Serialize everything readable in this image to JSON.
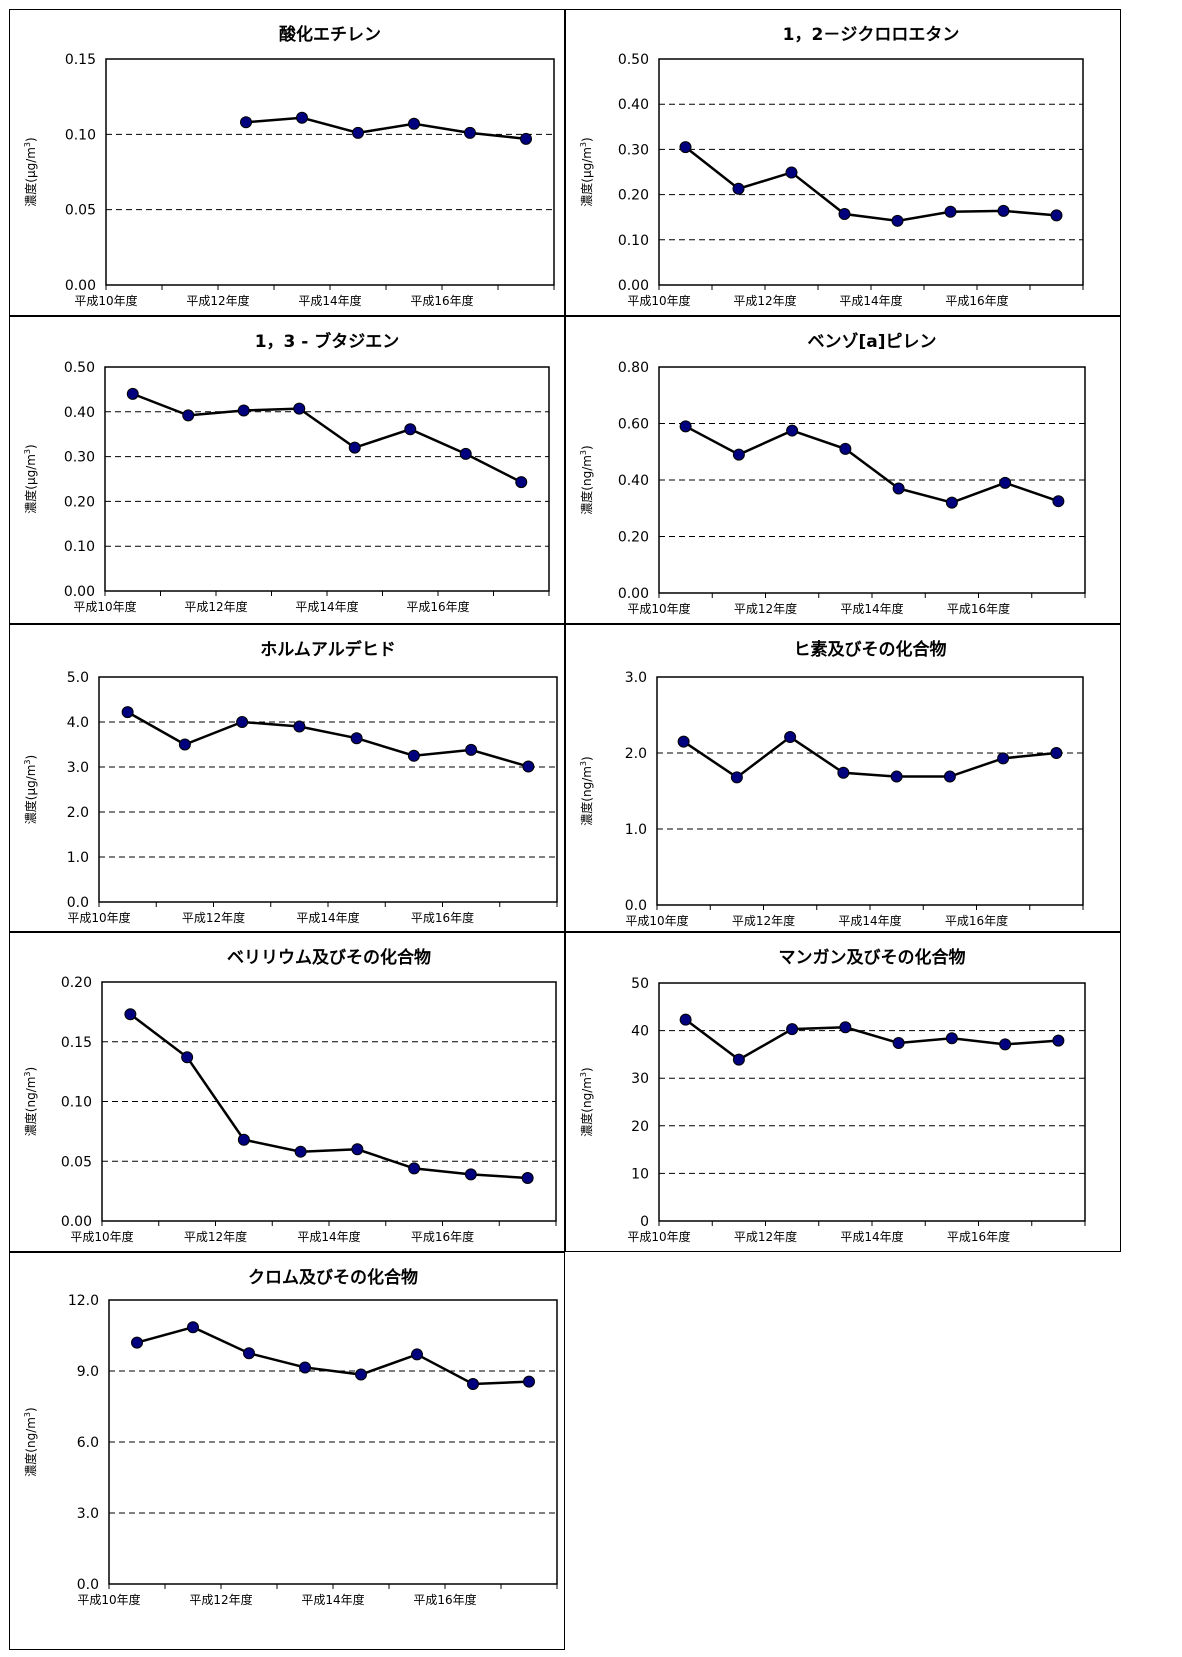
{
  "x_tick_labels": [
    "平成10年度",
    "平成12年度",
    "平成14年度",
    "平成16年度"
  ],
  "colors": {
    "line": "#000000",
    "marker": "#00007f",
    "grid": "#000000",
    "frame": "#000000",
    "background": "#ffffff"
  },
  "chart_data": [
    {
      "type": "line",
      "title": "酸化エチレン",
      "ylabel_main": "濃度(μg/m",
      "ylabel_sup": "3",
      "ylabel_tail": ")",
      "ylim": [
        0,
        0.15
      ],
      "y_ticks": [
        "0.00",
        "0.05",
        "0.10",
        "0.15"
      ],
      "grid": "dashed",
      "x": [
        10,
        11,
        12,
        13,
        14,
        15,
        16,
        17
      ],
      "values": [
        null,
        null,
        0.108,
        0.111,
        0.101,
        0.107,
        0.101,
        0.097
      ]
    },
    {
      "type": "line",
      "title": "1，2－ジクロロエタン",
      "ylabel_main": "濃度(μg/m",
      "ylabel_sup": "3",
      "ylabel_tail": ")",
      "ylim": [
        0,
        0.5
      ],
      "y_ticks": [
        "0.00",
        "0.10",
        "0.20",
        "0.30",
        "0.40",
        "0.50"
      ],
      "grid": "dashed",
      "x": [
        10,
        11,
        12,
        13,
        14,
        15,
        16,
        17
      ],
      "values": [
        0.305,
        0.213,
        0.249,
        0.157,
        0.142,
        0.162,
        0.164,
        0.154
      ]
    },
    {
      "type": "line",
      "title": "1，3 - ブタジエン",
      "ylabel_main": "濃度(μg/m",
      "ylabel_sup": "3",
      "ylabel_tail": ")",
      "ylim": [
        0,
        0.5
      ],
      "y_ticks": [
        "0.00",
        "0.10",
        "0.20",
        "0.30",
        "0.40",
        "0.50"
      ],
      "grid": "dashed",
      "x": [
        10,
        11,
        12,
        13,
        14,
        15,
        16,
        17
      ],
      "values": [
        0.44,
        0.392,
        0.403,
        0.407,
        0.32,
        0.361,
        0.306,
        0.243
      ]
    },
    {
      "type": "line",
      "title": "ベンゾ[a]ピレン",
      "ylabel_main": "濃度(ng/m",
      "ylabel_sup": "3",
      "ylabel_tail": ")",
      "ylim": [
        0,
        0.8
      ],
      "y_ticks": [
        "0.00",
        "0.20",
        "0.40",
        "0.60",
        "0.80"
      ],
      "grid": "dashed",
      "x": [
        10,
        11,
        12,
        13,
        14,
        15,
        16,
        17
      ],
      "values": [
        0.59,
        0.49,
        0.575,
        0.51,
        0.37,
        0.32,
        0.39,
        0.325
      ]
    },
    {
      "type": "line",
      "title": "ホルムアルデヒド",
      "ylabel_main": "濃度(μg/m",
      "ylabel_sup": "3",
      "ylabel_tail": ")",
      "ylim": [
        0,
        5
      ],
      "y_ticks": [
        "0.0",
        "1.0",
        "2.0",
        "3.0",
        "4.0",
        "5.0"
      ],
      "grid": "dashed",
      "x": [
        10,
        11,
        12,
        13,
        14,
        15,
        16,
        17
      ],
      "values": [
        4.22,
        3.5,
        4.0,
        3.9,
        3.64,
        3.25,
        3.38,
        3.01
      ]
    },
    {
      "type": "line",
      "title": "ヒ素及びその化合物",
      "ylabel_main": "濃度(ng/m",
      "ylabel_sup": "3",
      "ylabel_tail": ")",
      "ylim": [
        0,
        3
      ],
      "y_ticks": [
        "0.0",
        "1.0",
        "2.0",
        "3.0"
      ],
      "grid": "dashed",
      "x": [
        10,
        11,
        12,
        13,
        14,
        15,
        16,
        17
      ],
      "values": [
        2.15,
        1.68,
        2.21,
        1.74,
        1.69,
        1.69,
        1.93,
        2.0
      ]
    },
    {
      "type": "line",
      "title": "ベリリウム及びその化合物",
      "ylabel_main": "濃度(ng/m",
      "ylabel_sup": "3",
      "ylabel_tail": ")",
      "ylim": [
        0,
        0.2
      ],
      "y_ticks": [
        "0.00",
        "0.05",
        "0.10",
        "0.15",
        "0.20"
      ],
      "grid": "dashed",
      "x": [
        10,
        11,
        12,
        13,
        14,
        15,
        16,
        17
      ],
      "values": [
        0.173,
        0.137,
        0.068,
        0.058,
        0.06,
        0.044,
        0.039,
        0.036
      ]
    },
    {
      "type": "line",
      "title": "マンガン及びその化合物",
      "ylabel_main": "濃度(ng/m",
      "ylabel_sup": "3",
      "ylabel_tail": ")",
      "ylim": [
        0,
        50
      ],
      "y_ticks": [
        "0",
        "10",
        "20",
        "30",
        "40",
        "50"
      ],
      "grid": "dashed",
      "x": [
        10,
        11,
        12,
        13,
        14,
        15,
        16,
        17
      ],
      "values": [
        42.3,
        33.9,
        40.3,
        40.7,
        37.4,
        38.4,
        37.1,
        37.9
      ]
    },
    {
      "type": "line",
      "title": "クロム及びその化合物",
      "ylabel_main": "濃度(ng/m",
      "ylabel_sup": "3",
      "ylabel_tail": ")",
      "ylim": [
        0,
        12
      ],
      "y_ticks": [
        "0.0",
        "3.0",
        "6.0",
        "9.0",
        "12.0"
      ],
      "grid": "dashed",
      "x": [
        10,
        11,
        12,
        13,
        14,
        15,
        16,
        17
      ],
      "values": [
        10.2,
        10.85,
        9.75,
        9.15,
        8.85,
        9.7,
        8.45,
        8.55
      ]
    }
  ]
}
